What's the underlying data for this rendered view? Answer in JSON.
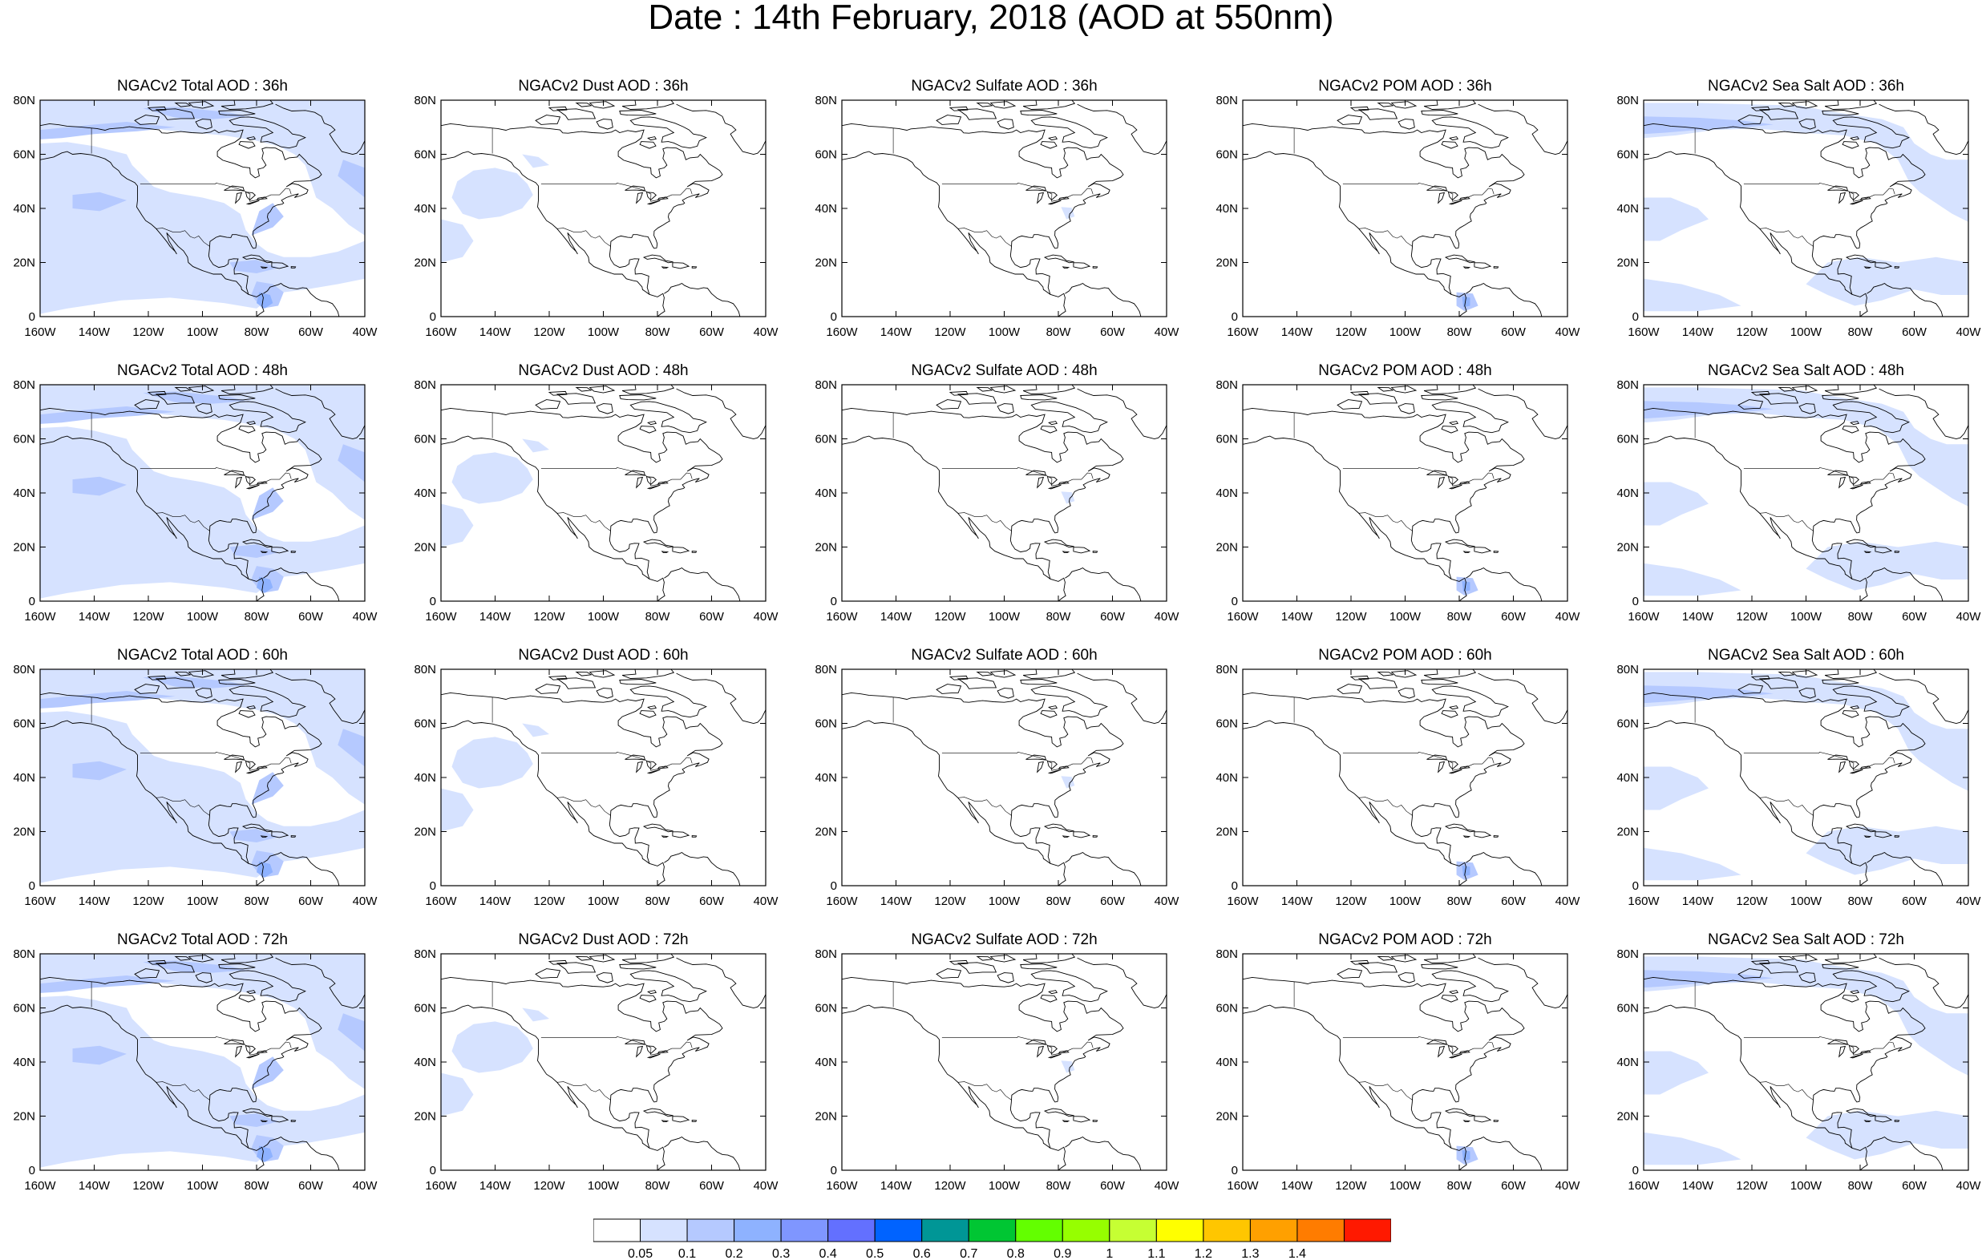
{
  "title": "Date : 14th February, 2018 (AOD at 550nm)",
  "map": {
    "lon_ticks": [
      "160W",
      "140W",
      "120W",
      "100W",
      "80W",
      "60W",
      "40W"
    ],
    "lat_ticks": [
      "0",
      "20N",
      "40N",
      "60N",
      "80N"
    ],
    "lon_range": [
      -160,
      -40
    ],
    "lat_range": [
      0,
      80
    ]
  },
  "panels": [
    {
      "title": "NGACv2 Total AOD : 36h",
      "field": "total"
    },
    {
      "title": "NGACv2 Dust AOD : 36h",
      "field": "dust"
    },
    {
      "title": "NGACv2 Sulfate AOD : 36h",
      "field": "sulfate"
    },
    {
      "title": "NGACv2 POM AOD : 36h",
      "field": "pom"
    },
    {
      "title": "NGACv2 Sea Salt AOD : 36h",
      "field": "seasalt"
    },
    {
      "title": "NGACv2 Total AOD : 48h",
      "field": "total"
    },
    {
      "title": "NGACv2 Dust AOD : 48h",
      "field": "dust"
    },
    {
      "title": "NGACv2 Sulfate AOD : 48h",
      "field": "sulfate"
    },
    {
      "title": "NGACv2 POM AOD : 48h",
      "field": "pom"
    },
    {
      "title": "NGACv2 Sea Salt AOD : 48h",
      "field": "seasalt"
    },
    {
      "title": "NGACv2 Total AOD : 60h",
      "field": "total"
    },
    {
      "title": "NGACv2 Dust AOD : 60h",
      "field": "dust"
    },
    {
      "title": "NGACv2 Sulfate AOD : 60h",
      "field": "sulfate"
    },
    {
      "title": "NGACv2 POM AOD : 60h",
      "field": "pom"
    },
    {
      "title": "NGACv2 Sea Salt AOD : 60h",
      "field": "seasalt"
    },
    {
      "title": "NGACv2 Total AOD : 72h",
      "field": "total"
    },
    {
      "title": "NGACv2 Dust AOD : 72h",
      "field": "dust"
    },
    {
      "title": "NGACv2 Sulfate AOD : 72h",
      "field": "sulfate"
    },
    {
      "title": "NGACv2 POM AOD : 72h",
      "field": "pom"
    },
    {
      "title": "NGACv2 Sea Salt  AOD : 72h",
      "field": "seasalt"
    }
  ],
  "colorbar": {
    "labels": [
      "0.05",
      "0.1",
      "0.2",
      "0.3",
      "0.4",
      "0.5",
      "0.6",
      "0.7",
      "0.8",
      "0.9",
      "1",
      "1.1",
      "1.2",
      "1.3",
      "1.4"
    ],
    "colors": [
      "#ffffff",
      "#d6e2ff",
      "#b5c9ff",
      "#8eb2ff",
      "#7f96ff",
      "#6370ff",
      "#0063ff",
      "#009696",
      "#00c633",
      "#63ff00",
      "#96ff00",
      "#c6ff33",
      "#ffff00",
      "#ffc600",
      "#ffa000",
      "#ff7c00",
      "#ff1900"
    ]
  }
}
